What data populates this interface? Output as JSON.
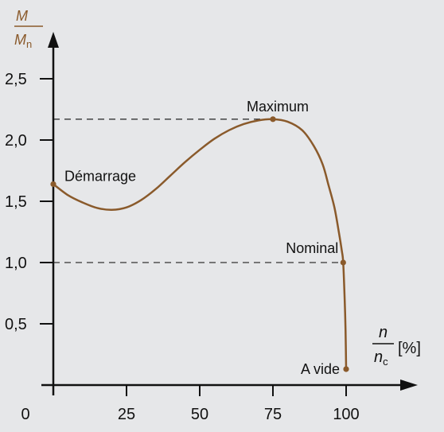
{
  "colors": {
    "background": "#e6e7e9",
    "axis": "#111111",
    "curve": "#8a5a2b",
    "ylabel": "#8a5a2b",
    "reference_line": "#333333"
  },
  "chart_data": {
    "type": "line",
    "ylabel": {
      "numerator": "M",
      "denominator_main": "M",
      "denominator_sub": "n"
    },
    "xlabel": {
      "numerator": "n",
      "denominator_main": "n",
      "denominator_sub": "c",
      "unit": "[%]"
    },
    "xlim": [
      0,
      120
    ],
    "ylim": [
      0,
      2.75
    ],
    "x_ticks": [
      {
        "value": 0,
        "label": "0"
      },
      {
        "value": 25,
        "label": "25"
      },
      {
        "value": 50,
        "label": "50"
      },
      {
        "value": 75,
        "label": "75"
      },
      {
        "value": 100,
        "label": "100"
      }
    ],
    "y_ticks": [
      {
        "value": 0.5,
        "label": "0,5"
      },
      {
        "value": 1.0,
        "label": "1,0"
      },
      {
        "value": 1.5,
        "label": "1,5"
      },
      {
        "value": 2.0,
        "label": "2,0"
      },
      {
        "value": 2.5,
        "label": "2,5"
      }
    ],
    "series": [
      {
        "points": [
          {
            "x": 0,
            "y": 1.64
          },
          {
            "x": 5,
            "y": 1.55
          },
          {
            "x": 10,
            "y": 1.49
          },
          {
            "x": 15,
            "y": 1.445
          },
          {
            "x": 20,
            "y": 1.43
          },
          {
            "x": 25,
            "y": 1.45
          },
          {
            "x": 30,
            "y": 1.51
          },
          {
            "x": 35,
            "y": 1.6
          },
          {
            "x": 40,
            "y": 1.71
          },
          {
            "x": 45,
            "y": 1.82
          },
          {
            "x": 50,
            "y": 1.92
          },
          {
            "x": 55,
            "y": 2.01
          },
          {
            "x": 60,
            "y": 2.08
          },
          {
            "x": 65,
            "y": 2.13
          },
          {
            "x": 70,
            "y": 2.16
          },
          {
            "x": 75,
            "y": 2.17
          },
          {
            "x": 80,
            "y": 2.15
          },
          {
            "x": 85,
            "y": 2.08
          },
          {
            "x": 89,
            "y": 1.95
          },
          {
            "x": 92,
            "y": 1.8
          },
          {
            "x": 94,
            "y": 1.63
          },
          {
            "x": 96,
            "y": 1.45
          },
          {
            "x": 97.5,
            "y": 1.25
          },
          {
            "x": 98.5,
            "y": 1.1
          },
          {
            "x": 99,
            "y": 1.0
          },
          {
            "x": 99.5,
            "y": 0.7
          },
          {
            "x": 99.8,
            "y": 0.45
          },
          {
            "x": 100,
            "y": 0.13
          }
        ]
      }
    ],
    "annotations": [
      {
        "label": "Démarrage",
        "x": 0,
        "y": 1.64,
        "anchor": "right-above"
      },
      {
        "label": "Maximum",
        "x": 75,
        "y": 2.17,
        "anchor": "above"
      },
      {
        "label": "Nominal",
        "x": 99,
        "y": 1.0,
        "anchor": "left-above"
      },
      {
        "label": "A vide",
        "x": 100,
        "y": 0.13,
        "anchor": "left"
      }
    ],
    "reference_lines": [
      {
        "y": 2.17,
        "x_from": 0,
        "x_to": 75
      },
      {
        "y": 1.0,
        "x_from": 0,
        "x_to": 99
      }
    ]
  }
}
